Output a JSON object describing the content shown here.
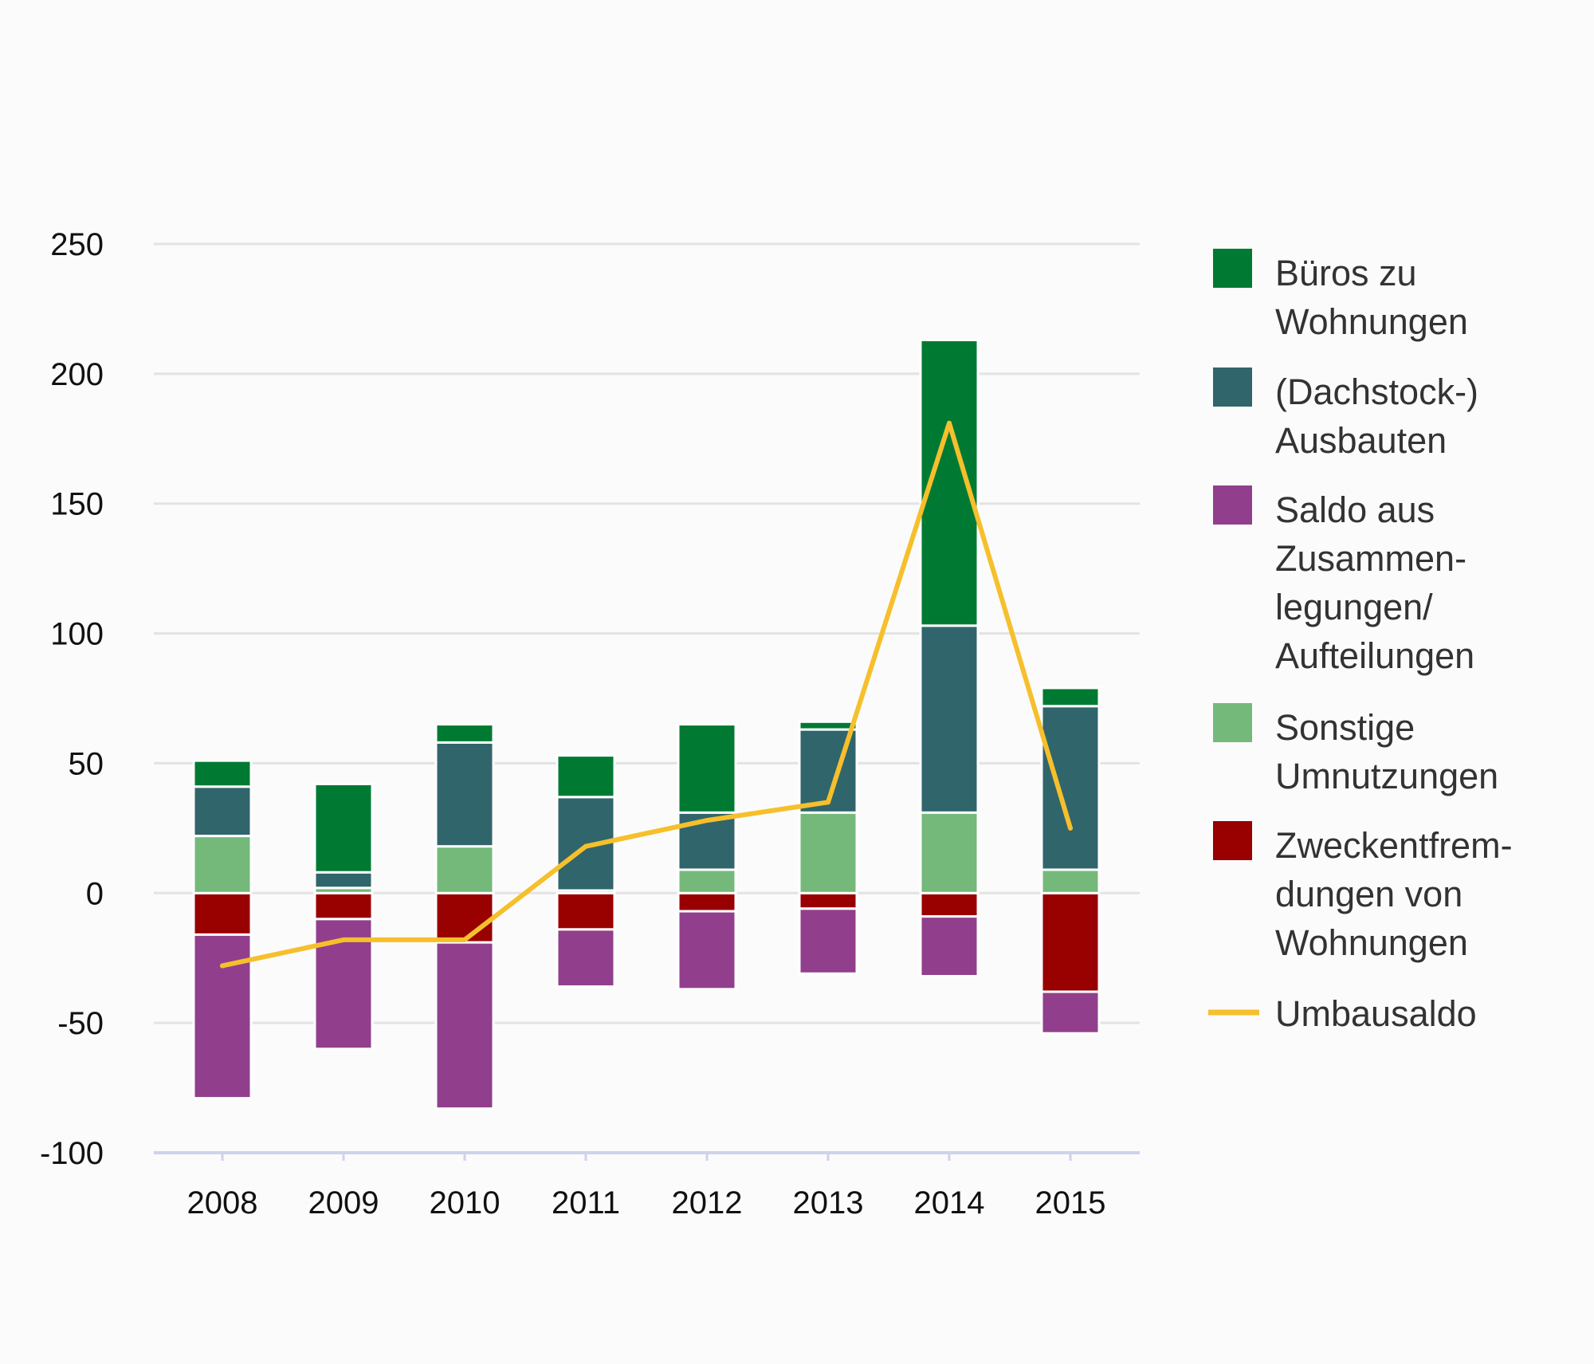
{
  "chart_data": {
    "type": "bar",
    "stacked": true,
    "categories": [
      "2008",
      "2009",
      "2010",
      "2011",
      "2012",
      "2013",
      "2014",
      "2015"
    ],
    "series": [
      {
        "name": "Zweckentfremdungen von Wohnungen",
        "color": "#990000",
        "values": [
          -16,
          -10,
          -19,
          -14,
          -7,
          -6,
          -9,
          -38
        ]
      },
      {
        "name": "Saldo aus Zusammenlegungen/Aufteilungen",
        "color": "#913f8c",
        "values": [
          -63,
          -50,
          -64,
          -22,
          -30,
          -25,
          -23,
          -16
        ]
      },
      {
        "name": "Sonstige Umnutzungen",
        "color": "#74b97a",
        "values": [
          22,
          2,
          18,
          1,
          9,
          31,
          31,
          9
        ]
      },
      {
        "name": "(Dachstock-) Ausbauten",
        "color": "#30656b",
        "values": [
          19,
          6,
          40,
          36,
          22,
          32,
          72,
          63
        ]
      },
      {
        "name": "Büros zu Wohnungen",
        "color": "#007a33",
        "values": [
          10,
          34,
          7,
          16,
          34,
          3,
          110,
          7
        ]
      }
    ],
    "line": {
      "name": "Umbausaldo",
      "color": "#f6bf2c",
      "values": [
        -28,
        -18,
        -18,
        18,
        28,
        35,
        181,
        25
      ]
    },
    "ylim": [
      -100,
      250
    ],
    "yticks": [
      "250",
      "200",
      "150",
      "100",
      "50",
      "0",
      "-50",
      "-100"
    ],
    "ytick_values": [
      250,
      200,
      150,
      100,
      50,
      0,
      -50,
      -100
    ],
    "grid": true,
    "legend_position": "right",
    "legend": [
      {
        "key": "bueros",
        "kind": "swatch",
        "color": "#007a33",
        "lines": [
          "Büros zu",
          "Wohnungen"
        ]
      },
      {
        "key": "ausbauten",
        "kind": "swatch",
        "color": "#30656b",
        "lines": [
          "(Dachstock-)",
          "Ausbauten"
        ]
      },
      {
        "key": "saldo",
        "kind": "swatch",
        "color": "#913f8c",
        "lines": [
          "Saldo aus",
          "Zusammen-",
          "legungen/",
          "Aufteilungen"
        ]
      },
      {
        "key": "sonstige",
        "kind": "swatch",
        "color": "#74b97a",
        "lines": [
          "Sonstige",
          "Umnutzungen"
        ]
      },
      {
        "key": "zweckentfremdungen",
        "kind": "swatch",
        "color": "#990000",
        "lines": [
          "Zweckentfrem-",
          "dungen von",
          "Wohnungen"
        ]
      },
      {
        "key": "umbausaldo",
        "kind": "line",
        "color": "#f6bf2c",
        "lines": [
          "Umbausaldo"
        ]
      }
    ]
  }
}
